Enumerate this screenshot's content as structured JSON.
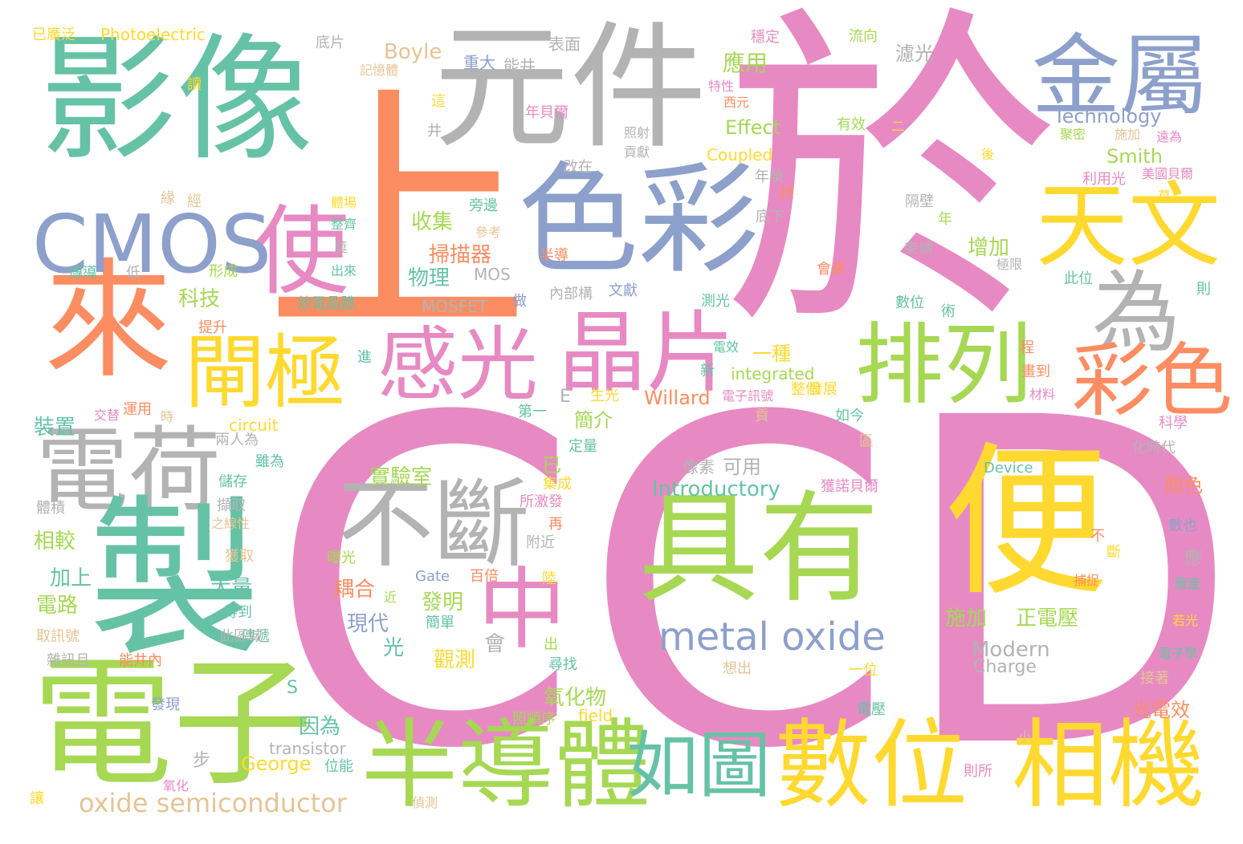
{
  "palette": {
    "pink": "#e78ac3",
    "orange": "#fc8d62",
    "teal": "#66c2a5",
    "blue": "#8da0cb",
    "gray": "#b3b3b3",
    "yellow": "#ffd92f",
    "green": "#a6d854",
    "tan": "#e5c494"
  },
  "words": [
    "CCD",
    "於",
    "上",
    "影像",
    "元件",
    "色彩",
    "金屬",
    "來",
    "天文",
    "使",
    "CMOS",
    "為",
    "排列",
    "彩色",
    "晶片",
    "感光",
    "閘極",
    "電荷",
    "製",
    "不斷",
    "具有",
    "便",
    "中",
    "電子",
    "半導體",
    "數位",
    "相機",
    "如圖",
    "metal oxide",
    "oxide semiconductor",
    "Photoelectric",
    "已廣泛",
    "Boyle",
    "Technology",
    "Smith",
    "Effect",
    "Coupled",
    "Introductory",
    "Willard",
    "Modern",
    "Charge",
    "Device",
    "Gate",
    "George",
    "transistor",
    "integrated",
    "circuit",
    "MOSFET",
    "MOS",
    "field",
    "應用",
    "科技",
    "物理",
    "掃描器",
    "收集",
    "實驗室",
    "增加",
    "施加",
    "正電壓",
    "簡介",
    "一種",
    "氧化物",
    "觀測",
    "發明",
    "耦合",
    "現代",
    "大量",
    "加上",
    "電路",
    "相較",
    "裝置",
    "光電效",
    "顏色",
    "可用",
    "像素",
    "已",
    "光",
    "因為",
    "會",
    "步",
    "S",
    "E",
    "濾光",
    "表面",
    "能井",
    "重大",
    "穩定",
    "流向",
    "底片",
    "記憶體",
    "年貝爾",
    "特性",
    "西元",
    "有效",
    "照射",
    "貢獻",
    "改在",
    "年榮",
    "利用光",
    "美國貝爾",
    "聚密",
    "施加",
    "後",
    "遠為",
    "隔壁",
    "束縛",
    "極限",
    "此位",
    "則",
    "數位",
    "術",
    "測光",
    "文獻",
    "內部構",
    "做",
    "參考",
    "旁邊",
    "半導",
    "整個",
    "發展",
    "電子訊號",
    "第一",
    "生光",
    "效電晶體",
    "傳導",
    "低",
    "形成",
    "出來",
    "提升",
    "交替",
    "運用",
    "時",
    "儲存",
    "擷取",
    "之線性",
    "獲取",
    "得到",
    "傳遞",
    "能井內",
    "取訊號",
    "雜訊且",
    "此區域",
    "發現",
    "氧化",
    "讓",
    "偵測",
    "位能",
    "照順序",
    "尋找",
    "出",
    "附近",
    "陸",
    "再",
    "曝光",
    "百倍",
    "簡單",
    "所激發",
    "集成",
    "定量",
    "獲諾貝爾",
    "如今",
    "區",
    "化時代",
    "科學",
    "材料",
    "畫到",
    "程",
    "新",
    "電效",
    "二",
    "井",
    "讀",
    "這",
    "緣",
    "經",
    "體場",
    "整齊",
    "獎",
    "兩人為",
    "雖為",
    "體積",
    "進",
    "貢",
    "不",
    "斷",
    "應",
    "捕捉",
    "應產",
    "若光",
    "電子學",
    "接著",
    "小",
    "則所",
    "電壓",
    "一位",
    "想出",
    "近",
    "數也",
    "年",
    "技",
    "底下",
    "會產",
    "莫"
  ]
}
